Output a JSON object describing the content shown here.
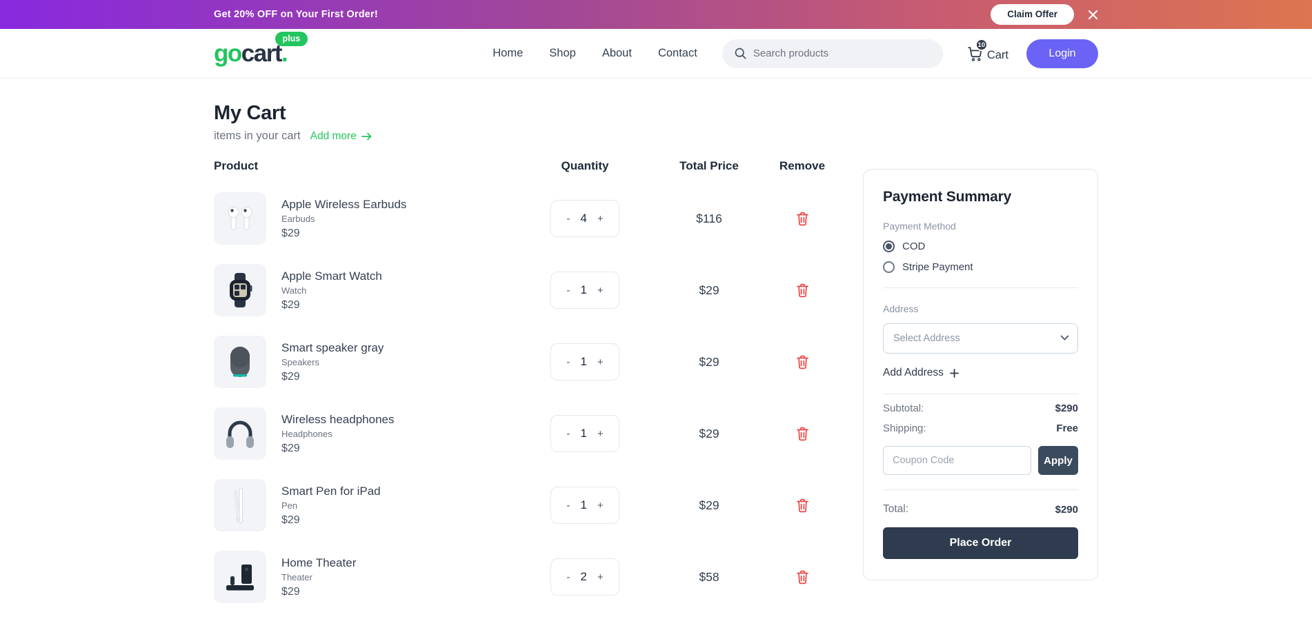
{
  "banner": {
    "text": "Get 20% OFF on Your First Order!",
    "claim_label": "Claim Offer"
  },
  "header": {
    "logo": {
      "go": "go",
      "cart": "cart",
      "dot": ".",
      "badge": "plus"
    },
    "nav": [
      "Home",
      "Shop",
      "About",
      "Contact"
    ],
    "search_placeholder": "Search products",
    "cart_label": "Cart",
    "cart_count": "10",
    "login_label": "Login"
  },
  "cart": {
    "title": "My Cart",
    "subtitle": "items in your cart",
    "add_more_label": "Add more",
    "columns": {
      "product": "Product",
      "quantity": "Quantity",
      "total": "Total Price",
      "remove": "Remove"
    },
    "stepper": {
      "decrease": "-",
      "increase": "+"
    },
    "items": [
      {
        "name": "Apple Wireless Earbuds",
        "category": "Earbuds",
        "unit_price": "$29",
        "quantity": "4",
        "total": "$116",
        "image": "earbuds"
      },
      {
        "name": "Apple Smart Watch",
        "category": "Watch",
        "unit_price": "$29",
        "quantity": "1",
        "total": "$29",
        "image": "watch"
      },
      {
        "name": "Smart speaker gray",
        "category": "Speakers",
        "unit_price": "$29",
        "quantity": "1",
        "total": "$29",
        "image": "speaker"
      },
      {
        "name": "Wireless headphones",
        "category": "Headphones",
        "unit_price": "$29",
        "quantity": "1",
        "total": "$29",
        "image": "headphones"
      },
      {
        "name": "Smart Pen for iPad",
        "category": "Pen",
        "unit_price": "$29",
        "quantity": "1",
        "total": "$29",
        "image": "pen"
      },
      {
        "name": "Home Theater",
        "category": "Theater",
        "unit_price": "$29",
        "quantity": "2",
        "total": "$58",
        "image": "theater"
      }
    ]
  },
  "summary": {
    "title": "Payment Summary",
    "payment_method_label": "Payment Method",
    "payment_methods": [
      {
        "label": "COD",
        "selected": true
      },
      {
        "label": "Stripe Payment",
        "selected": false
      }
    ],
    "address_label": "Address",
    "address_placeholder": "Select Address",
    "add_address_label": "Add Address",
    "subtotal_label": "Subtotal:",
    "subtotal_value": "$290",
    "shipping_label": "Shipping:",
    "shipping_value": "Free",
    "coupon_placeholder": "Coupon Code",
    "apply_label": "Apply",
    "total_label": "Total:",
    "total_value": "$290",
    "place_order_label": "Place Order"
  },
  "colors": {
    "brand_green": "#22c55e",
    "banner_gradient_start": "#8829df",
    "banner_gradient_end": "#dd7550",
    "login_indigo": "#6a63f6",
    "button_slate": "#2f3b4e",
    "danger_red": "#ef4444",
    "text_dark": "#1e2939",
    "text_gray": "#6b7280"
  }
}
